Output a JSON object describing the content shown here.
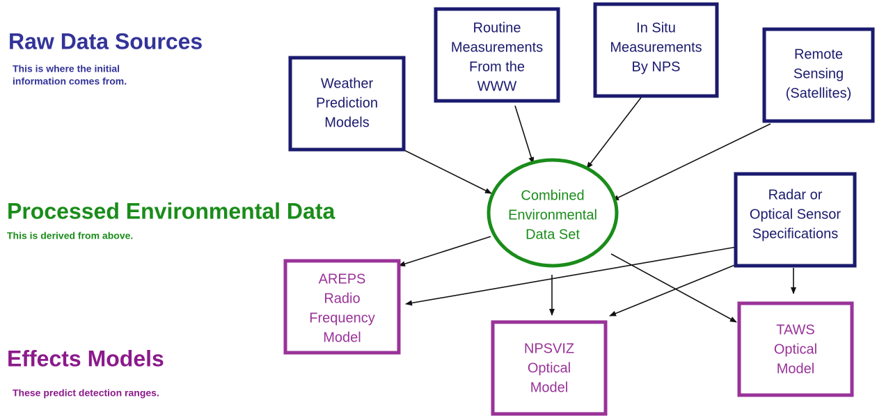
{
  "sections": [
    {
      "title": "Raw Data Sources",
      "description": [
        "This is where the initial",
        "information comes from."
      ]
    },
    {
      "title": "Processed Environmental Data",
      "description": [
        "This is derived from above."
      ]
    },
    {
      "title": "Effects Models",
      "description": [
        "These predict detection ranges."
      ]
    }
  ],
  "nodes": [
    {
      "label": [
        "Weather",
        "Prediction",
        "Models"
      ]
    },
    {
      "label": [
        "Routine",
        "Measurements",
        "From the",
        "WWW"
      ]
    },
    {
      "label": [
        "In Situ",
        "Measurements",
        "By NPS"
      ]
    },
    {
      "label": [
        "Remote",
        "Sensing",
        "(Satellites)"
      ]
    },
    {
      "label": [
        "Combined",
        "Environmental",
        "Data Set"
      ]
    },
    {
      "label": [
        "Radar or",
        "Optical Sensor",
        "Specifications"
      ]
    },
    {
      "label": [
        "AREPS",
        "Radio",
        "Frequency",
        "Model"
      ]
    },
    {
      "label": [
        "NPSVIZ",
        "Optical",
        "Model"
      ]
    },
    {
      "label": [
        "TAWS",
        "Optical",
        "Model"
      ]
    }
  ]
}
